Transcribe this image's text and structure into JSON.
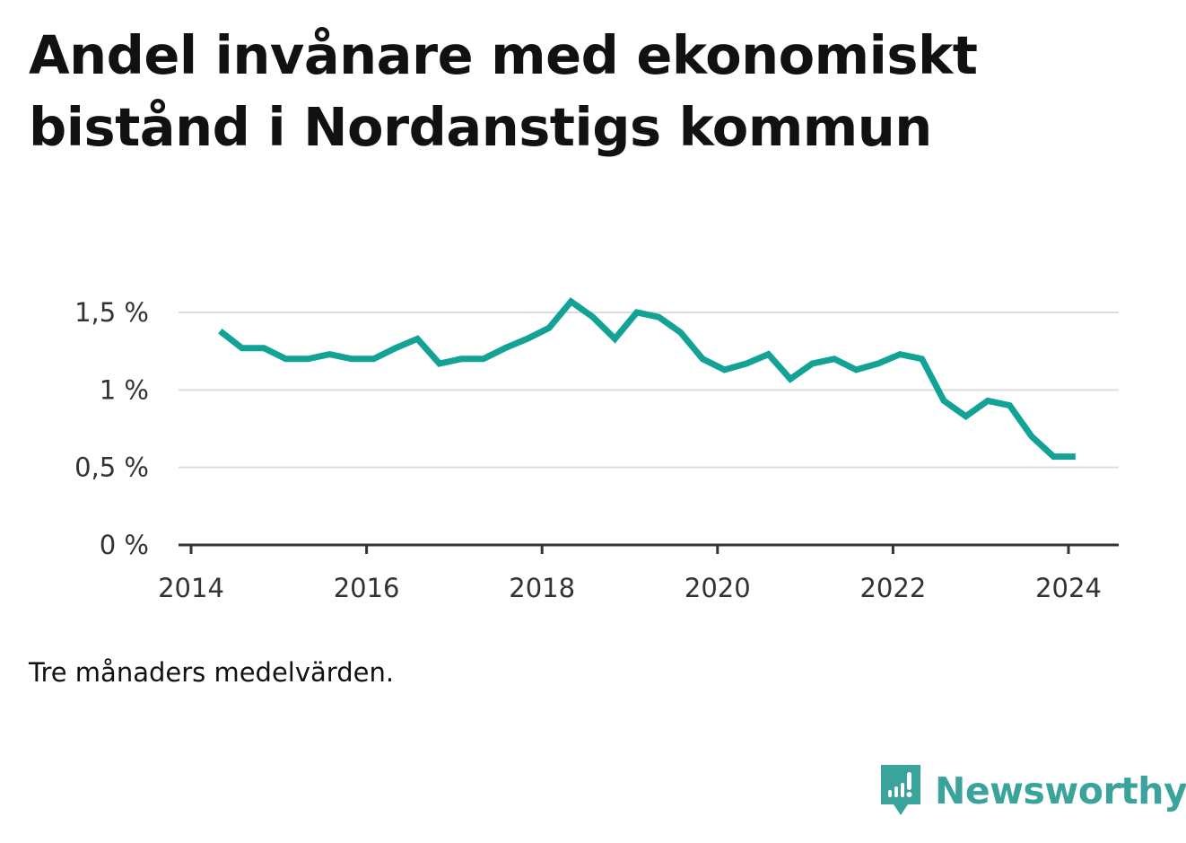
{
  "title": "Andel invånare med ekonomiskt bistånd i Nordanstigs kommun",
  "note": "Tre månaders medelvärden.",
  "brand": {
    "name": "Newsworthy",
    "color": "#3aa39c"
  },
  "colors": {
    "line": "#12a396",
    "grid": "#dddddd",
    "axis": "#333333"
  },
  "chart_data": {
    "type": "line",
    "title": "Andel invånare med ekonomiskt bistånd i Nordanstigs kommun",
    "xlabel": "",
    "ylabel": "",
    "xlim": [
      2014,
      2024.6
    ],
    "ylim": [
      0,
      1.65
    ],
    "grid": true,
    "yticks": [
      {
        "value": 0,
        "label": "0 %"
      },
      {
        "value": 0.5,
        "label": "0,5 %"
      },
      {
        "value": 1,
        "label": "1 %"
      },
      {
        "value": 1.5,
        "label": "1,5 %"
      }
    ],
    "xticks": [
      {
        "value": 2014,
        "label": "2014"
      },
      {
        "value": 2016,
        "label": "2016"
      },
      {
        "value": 2018,
        "label": "2018"
      },
      {
        "value": 2020,
        "label": "2020"
      },
      {
        "value": 2022,
        "label": "2022"
      },
      {
        "value": 2024,
        "label": "2024"
      }
    ],
    "series": [
      {
        "values": [
          [
            2014.33,
            1.38
          ],
          [
            2014.58,
            1.27
          ],
          [
            2014.83,
            1.27
          ],
          [
            2015.08,
            1.2
          ],
          [
            2015.33,
            1.2
          ],
          [
            2015.58,
            1.23
          ],
          [
            2015.83,
            1.2
          ],
          [
            2016.08,
            1.2
          ],
          [
            2016.33,
            1.27
          ],
          [
            2016.58,
            1.33
          ],
          [
            2016.83,
            1.17
          ],
          [
            2017.08,
            1.2
          ],
          [
            2017.33,
            1.2
          ],
          [
            2017.58,
            1.27
          ],
          [
            2017.83,
            1.33
          ],
          [
            2018.08,
            1.4
          ],
          [
            2018.33,
            1.57
          ],
          [
            2018.58,
            1.47
          ],
          [
            2018.83,
            1.33
          ],
          [
            2019.08,
            1.5
          ],
          [
            2019.33,
            1.47
          ],
          [
            2019.58,
            1.37
          ],
          [
            2019.83,
            1.2
          ],
          [
            2020.08,
            1.13
          ],
          [
            2020.33,
            1.17
          ],
          [
            2020.58,
            1.23
          ],
          [
            2020.83,
            1.07
          ],
          [
            2021.08,
            1.17
          ],
          [
            2021.33,
            1.2
          ],
          [
            2021.58,
            1.13
          ],
          [
            2021.83,
            1.17
          ],
          [
            2022.08,
            1.23
          ],
          [
            2022.33,
            1.2
          ],
          [
            2022.58,
            0.93
          ],
          [
            2022.83,
            0.83
          ],
          [
            2023.08,
            0.93
          ],
          [
            2023.33,
            0.9
          ],
          [
            2023.58,
            0.7
          ],
          [
            2023.83,
            0.57
          ],
          [
            2024.08,
            0.57
          ]
        ]
      }
    ]
  }
}
